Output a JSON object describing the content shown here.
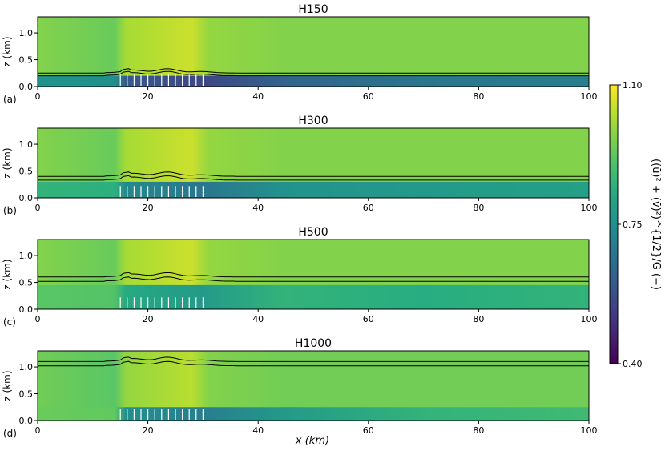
{
  "chart_data": {
    "type": "heatmap",
    "xlabel": "x (km)",
    "ylabel": "z (km)",
    "xlim": [
      0,
      100
    ],
    "x_ticks": [
      "0",
      "20",
      "40",
      "60",
      "80",
      "100"
    ],
    "colormap": "viridis",
    "colorbar": {
      "label": "((ū)² + (v̄)²)^{1/2}/G (−)",
      "vmin": 0.4,
      "vmax": 1.1,
      "ticks": [
        "1.10",
        "0.75",
        "0.40"
      ]
    },
    "turbine_region_x": [
      15,
      30
    ],
    "turbine_count": 13,
    "panels": [
      {
        "letter": "(a)",
        "title": "H150",
        "ylim": [
          0,
          1.3
        ],
        "y_ticks": [
          "0.0",
          "0.5",
          "1.0"
        ],
        "contour_levels_km": [
          0.2,
          0.25
        ],
        "background_value": 0.97,
        "wake_value": 0.55,
        "boundary_layer_value": 0.7,
        "wake_top_km": 0.2
      },
      {
        "letter": "(b)",
        "title": "H300",
        "ylim": [
          0,
          1.3
        ],
        "y_ticks": [
          "0.0",
          "0.5",
          "1.0"
        ],
        "contour_levels_km": [
          0.33,
          0.4
        ],
        "background_value": 0.97,
        "wake_value": 0.68,
        "boundary_layer_value": 0.8,
        "wake_top_km": 0.3
      },
      {
        "letter": "(c)",
        "title": "H500",
        "ylim": [
          0,
          1.3
        ],
        "y_ticks": [
          "0.0",
          "0.5",
          "1.0"
        ],
        "contour_levels_km": [
          0.52,
          0.6
        ],
        "background_value": 0.97,
        "wake_value": 0.78,
        "boundary_layer_value": 0.86,
        "wake_top_km": 0.45
      },
      {
        "letter": "(d)",
        "title": "H1000",
        "ylim": [
          0,
          1.3
        ],
        "y_ticks": [
          "0.0",
          "0.5",
          "1.0"
        ],
        "contour_levels_km": [
          1.02,
          1.1
        ],
        "background_value": 0.95,
        "wake_value": 0.7,
        "boundary_layer_value": 0.88,
        "wake_top_km": 0.25
      }
    ]
  }
}
